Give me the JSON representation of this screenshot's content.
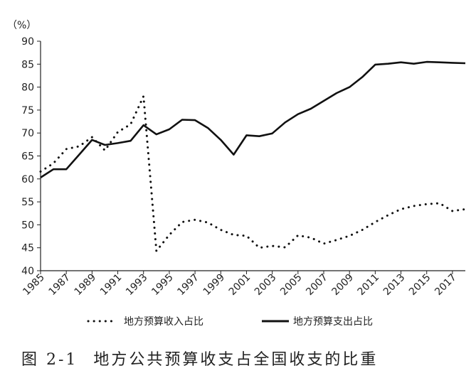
{
  "figure": {
    "label": "图 2-1",
    "title": "地方公共预算收支占全国收支的比重"
  },
  "chart_data": {
    "type": "line",
    "ylabel": "（%）",
    "xlabel": "",
    "ylim": [
      40,
      90
    ],
    "yticks": [
      40,
      45,
      50,
      55,
      60,
      65,
      70,
      75,
      80,
      85,
      90
    ],
    "xlim": [
      1985,
      2018
    ],
    "xticks": [
      1985,
      1987,
      1989,
      1991,
      1993,
      1995,
      1997,
      1999,
      2001,
      2003,
      2005,
      2007,
      2009,
      2011,
      2013,
      2015,
      2017
    ],
    "grid": false,
    "legend": "bottom",
    "series": [
      {
        "name": "地方预算收入占比",
        "style": "dotted",
        "color": "#111111",
        "x": [
          1985,
          1986,
          1987,
          1988,
          1989,
          1990,
          1991,
          1992,
          1993,
          1994,
          1995,
          1996,
          1997,
          1998,
          1999,
          2000,
          2001,
          2002,
          2003,
          2004,
          2005,
          2006,
          2007,
          2008,
          2009,
          2010,
          2011,
          2012,
          2013,
          2014,
          2015,
          2016,
          2017,
          2018
        ],
        "values": [
          61.6,
          63.4,
          66.5,
          67.1,
          69.1,
          66.2,
          70.2,
          71.9,
          78.0,
          44.3,
          47.8,
          50.6,
          51.1,
          50.5,
          48.9,
          47.8,
          47.6,
          45.0,
          45.4,
          45.1,
          47.7,
          47.2,
          45.9,
          46.7,
          47.6,
          48.9,
          50.6,
          52.1,
          53.4,
          54.1,
          54.5,
          54.7,
          53.0,
          53.4
        ]
      },
      {
        "name": "地方预算支出占比",
        "style": "solid",
        "color": "#111111",
        "x": [
          1985,
          1986,
          1987,
          1988,
          1989,
          1990,
          1991,
          1992,
          1993,
          1994,
          1995,
          1996,
          1997,
          1998,
          1999,
          2000,
          2001,
          2002,
          2003,
          2004,
          2005,
          2006,
          2007,
          2008,
          2009,
          2010,
          2011,
          2012,
          2013,
          2014,
          2015,
          2016,
          2017,
          2018
        ],
        "values": [
          60.3,
          62.1,
          62.1,
          65.3,
          68.5,
          67.4,
          67.8,
          68.3,
          71.7,
          69.7,
          70.8,
          72.9,
          72.8,
          71.1,
          68.5,
          65.3,
          69.5,
          69.3,
          69.9,
          72.3,
          74.1,
          75.3,
          77.0,
          78.7,
          80.0,
          82.2,
          84.9,
          85.1,
          85.4,
          85.1,
          85.5,
          85.4,
          85.3,
          85.2
        ]
      }
    ]
  }
}
